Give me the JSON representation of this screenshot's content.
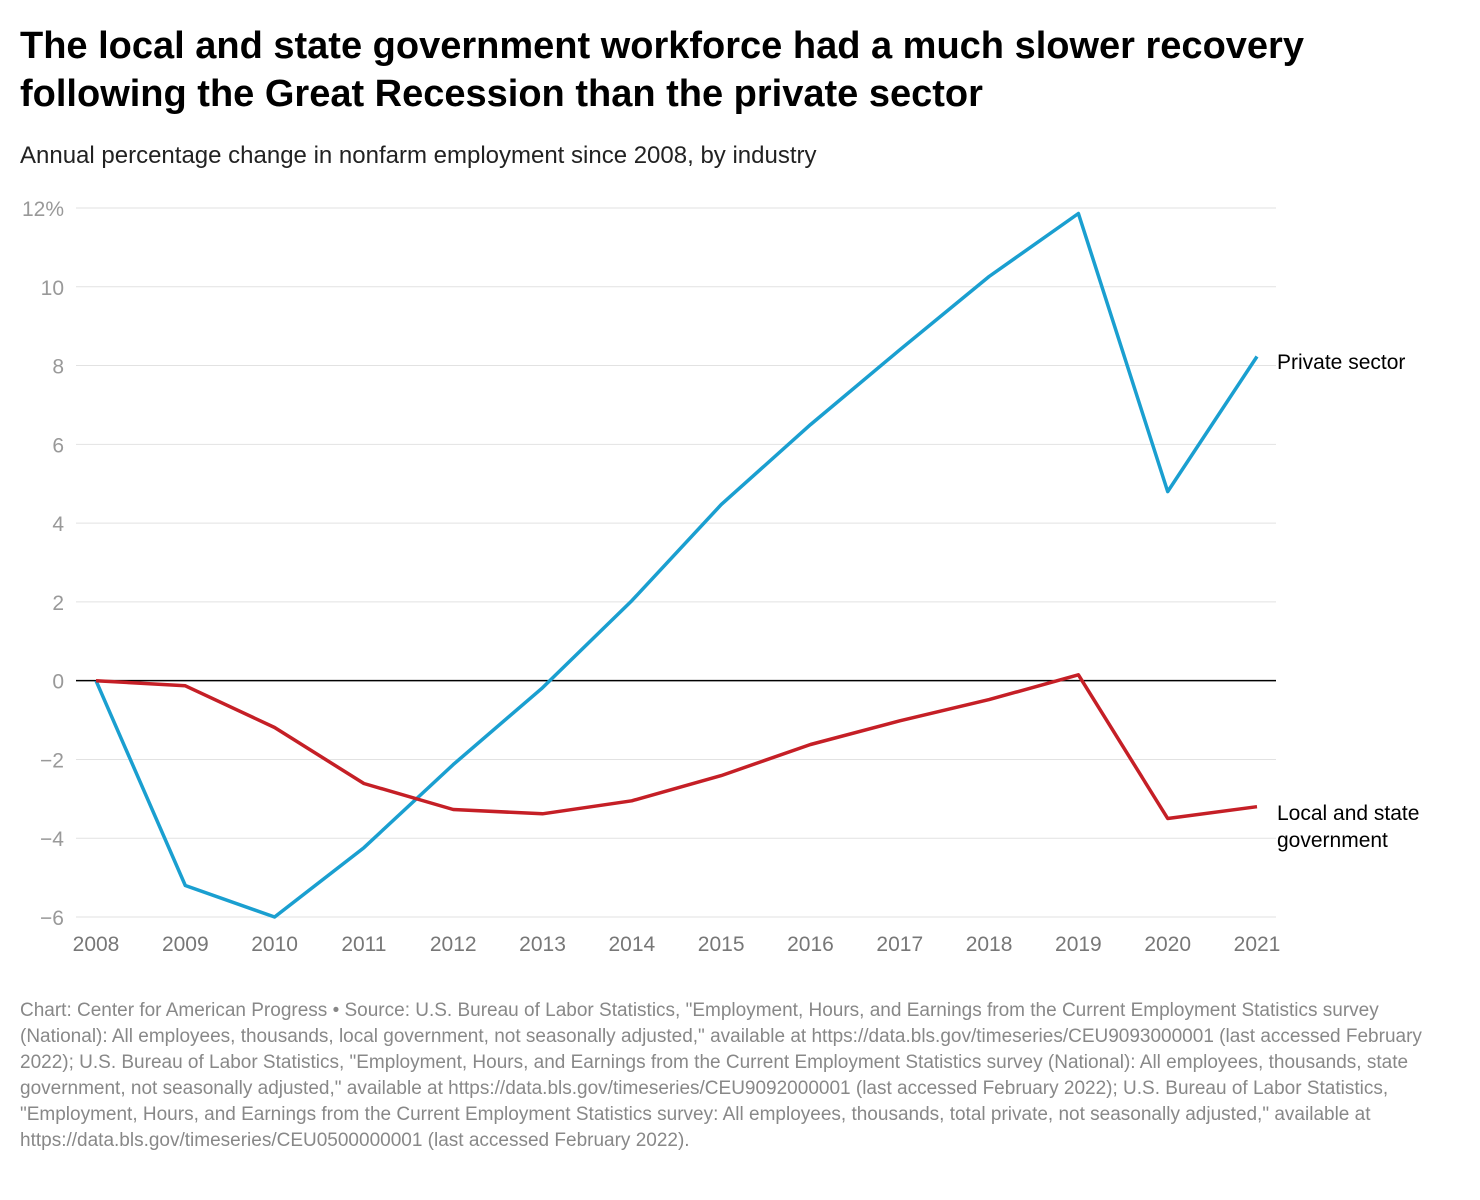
{
  "chart_data": {
    "type": "line",
    "title": "The local and state government workforce had a much slower recovery following the Great Recession than the private sector",
    "subtitle": "Annual percentage change in nonfarm employment since 2008, by industry",
    "x": [
      2008,
      2009,
      2010,
      2011,
      2012,
      2013,
      2014,
      2015,
      2016,
      2017,
      2018,
      2019,
      2020,
      2021
    ],
    "ylim": [
      -6,
      12
    ],
    "yticks": [
      -6,
      -4,
      -2,
      0,
      2,
      4,
      6,
      8,
      10,
      12
    ],
    "ytick_labels": [
      "−6",
      "−4",
      "−2",
      "0",
      "2",
      "4",
      "6",
      "8",
      "10",
      "12%"
    ],
    "grid": true,
    "series": [
      {
        "name": "Private sector",
        "color": "#1a9fd0",
        "values": [
          0,
          -5.2,
          -6.0,
          -4.24,
          -2.13,
          -0.18,
          2.03,
          4.47,
          6.5,
          8.4,
          10.26,
          11.86,
          4.8,
          8.23
        ]
      },
      {
        "name": "Local and state government",
        "color": "#c51f26",
        "values": [
          0,
          -0.13,
          -1.19,
          -2.61,
          -3.27,
          -3.38,
          -3.05,
          -2.41,
          -1.62,
          -1.02,
          -0.48,
          0.15,
          -3.5,
          -3.2
        ]
      }
    ],
    "labels": {
      "private": "Private sector",
      "gov_line1": "Local and state",
      "gov_line2": "government"
    }
  },
  "footer": "Chart: Center for American Progress • Source: U.S. Bureau of Labor Statistics, \"Employment, Hours, and Earnings from the Current Employment Statistics survey (National): All employees, thousands, local government, not seasonally adjusted,\" available at https://data.bls.gov/timeseries/CEU9093000001 (last accessed February 2022); U.S. Bureau of Labor Statistics, \"Employment, Hours, and Earnings from the Current Employment Statistics survey (National): All employees, thousands, state government, not seasonally adjusted,\" available at https://data.bls.gov/timeseries/CEU9092000001 (last accessed February 2022); U.S. Bureau of Labor Statistics, \"Employment, Hours, and Earnings from the Current Employment Statistics survey: All employees, thousands, total private, not seasonally adjusted,\" available at https://data.bls.gov/timeseries/CEU0500000001 (last accessed February 2022)."
}
